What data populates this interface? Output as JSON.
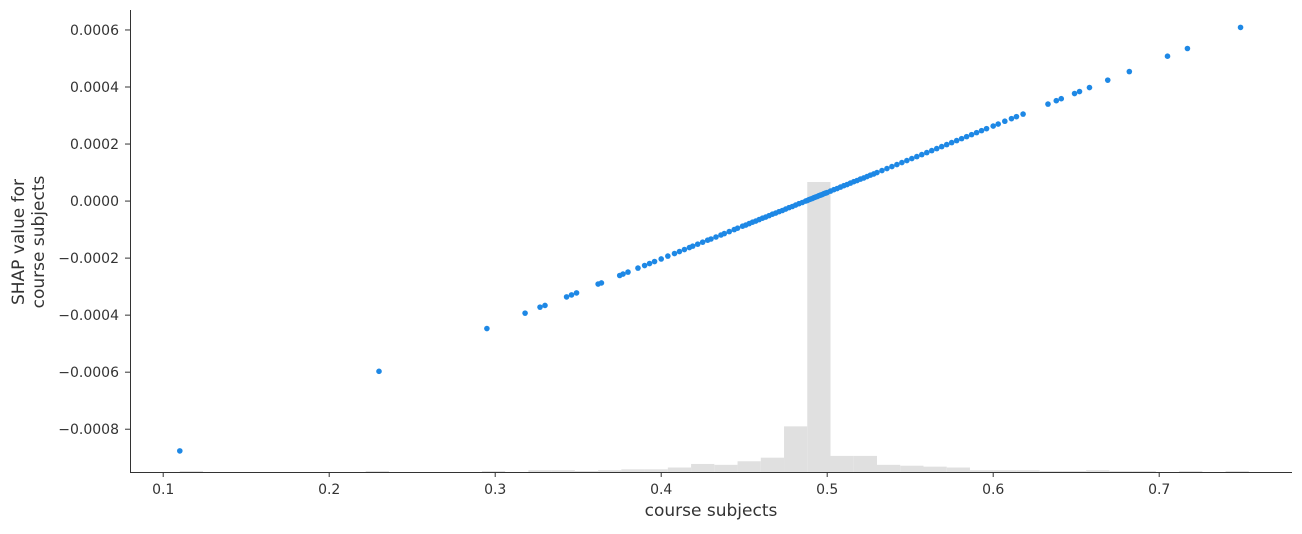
{
  "chart_data": {
    "type": "scatter",
    "title": "",
    "xlabel": "course subjects",
    "ylabel_lines": [
      "SHAP value for",
      "course subjects"
    ],
    "xlim": [
      0.08,
      0.78
    ],
    "ylim": [
      -0.00095,
      0.00067
    ],
    "x_ticks": [
      0.1,
      0.2,
      0.3,
      0.4,
      0.5,
      0.6,
      0.7
    ],
    "x_tick_labels": [
      "0.1",
      "0.2",
      "0.3",
      "0.4",
      "0.5",
      "0.6",
      "0.7"
    ],
    "y_ticks": [
      0.0006,
      0.0004,
      0.0002,
      0.0,
      -0.0002,
      -0.0004,
      -0.0006,
      -0.0008
    ],
    "y_tick_labels": [
      "0.0006",
      "0.0004",
      "0.0002",
      "0.0000",
      "−0.0002",
      "−0.0004",
      "−0.0006",
      "−0.0008"
    ],
    "grid": false,
    "colors": {
      "points": "#1E88E5",
      "histogram": "#E0E0E0",
      "axis": "#333333",
      "text": "#333333"
    },
    "series": [
      {
        "x": [
          0.11,
          0.23,
          0.295,
          0.318,
          0.327,
          0.33,
          0.343,
          0.346,
          0.349,
          0.362,
          0.364,
          0.375,
          0.377,
          0.38,
          0.386,
          0.39,
          0.393,
          0.396,
          0.4,
          0.404,
          0.408,
          0.411,
          0.414,
          0.417,
          0.419,
          0.422,
          0.425,
          0.428,
          0.43,
          0.433,
          0.436,
          0.438,
          0.441,
          0.444,
          0.446,
          0.449,
          0.451,
          0.453,
          0.455,
          0.457,
          0.459,
          0.461,
          0.463,
          0.465,
          0.467,
          0.469,
          0.471,
          0.473,
          0.475,
          0.477,
          0.479,
          0.481,
          0.483,
          0.485,
          0.487,
          0.488,
          0.489,
          0.49,
          0.491,
          0.492,
          0.493,
          0.494,
          0.495,
          0.496,
          0.497,
          0.498,
          0.499,
          0.5,
          0.502,
          0.504,
          0.506,
          0.508,
          0.51,
          0.512,
          0.514,
          0.516,
          0.518,
          0.52,
          0.522,
          0.524,
          0.526,
          0.528,
          0.53,
          0.533,
          0.536,
          0.539,
          0.542,
          0.545,
          0.548,
          0.551,
          0.554,
          0.557,
          0.56,
          0.563,
          0.566,
          0.569,
          0.572,
          0.575,
          0.578,
          0.581,
          0.584,
          0.587,
          0.59,
          0.593,
          0.596,
          0.6,
          0.603,
          0.607,
          0.611,
          0.614,
          0.618,
          0.633,
          0.638,
          0.641,
          0.649,
          0.652,
          0.658,
          0.669,
          0.682,
          0.705,
          0.717,
          0.749
        ],
        "y": [
          -0.000876,
          -0.000597,
          -0.000447,
          -0.000393,
          -0.000372,
          -0.000366,
          -0.000336,
          -0.000329,
          -0.000322,
          -0.000291,
          -0.000287,
          -0.000261,
          -0.000256,
          -0.000249,
          -0.000235,
          -0.000226,
          -0.000219,
          -0.000212,
          -0.000203,
          -0.000193,
          -0.000184,
          -0.000177,
          -0.00017,
          -0.000163,
          -0.000158,
          -0.000151,
          -0.000144,
          -0.000137,
          -0.000133,
          -0.000126,
          -0.000119,
          -0.000114,
          -0.000107,
          -0.0001,
          -9.5e-05,
          -8.8e-05,
          -8.4e-05,
          -7.9e-05,
          -7.4e-05,
          -7e-05,
          -6.5e-05,
          -6e-05,
          -5.6e-05,
          -5.1e-05,
          -4.6e-05,
          -4.2e-05,
          -3.7e-05,
          -3.3e-05,
          -2.8e-05,
          -2.3e-05,
          -1.9e-05,
          -1.4e-05,
          -9e-06,
          -5e-06,
          0.0,
          2e-06,
          5e-06,
          7e-06,
          9e-06,
          1.2e-05,
          1.4e-05,
          1.6e-05,
          1.9e-05,
          2.1e-05,
          2.3e-05,
          2.6e-05,
          2.8e-05,
          3e-05,
          3.5e-05,
          4e-05,
          4.4e-05,
          4.9e-05,
          5.4e-05,
          5.8e-05,
          6.3e-05,
          6.8e-05,
          7.2e-05,
          7.7e-05,
          8.1e-05,
          8.6e-05,
          9.1e-05,
          9.5e-05,
          0.0001,
          0.000107,
          0.000114,
          0.000121,
          0.000128,
          0.000135,
          0.000142,
          0.000149,
          0.000156,
          0.000163,
          0.00017,
          0.000177,
          0.000184,
          0.000191,
          0.000198,
          0.000205,
          0.000212,
          0.000219,
          0.000226,
          0.000233,
          0.00024,
          0.000247,
          0.000254,
          0.000263,
          0.00027,
          0.00028,
          0.000289,
          0.000296,
          0.000305,
          0.00034,
          0.000352,
          0.000359,
          0.000377,
          0.000384,
          0.000398,
          0.000424,
          0.000454,
          0.000508,
          0.000535,
          0.000609
        ]
      }
    ],
    "histogram": {
      "bin_edges": [
        0.11,
        0.124,
        0.138,
        0.152,
        0.166,
        0.18,
        0.194,
        0.208,
        0.222,
        0.236,
        0.25,
        0.264,
        0.278,
        0.292,
        0.306,
        0.32,
        0.334,
        0.348,
        0.362,
        0.376,
        0.39,
        0.404,
        0.418,
        0.432,
        0.446,
        0.46,
        0.474,
        0.488,
        0.502,
        0.516,
        0.53,
        0.544,
        0.558,
        0.572,
        0.586,
        0.6,
        0.614,
        0.628,
        0.642,
        0.656,
        0.67,
        0.684,
        0.698,
        0.712,
        0.726,
        0.74,
        0.754
      ],
      "counts": [
        1,
        0,
        0,
        0,
        0,
        0,
        0,
        0,
        1,
        0,
        0,
        0,
        0,
        1,
        0,
        2,
        2,
        1,
        2,
        3,
        3,
        5,
        9,
        8,
        12,
        16,
        51,
        324,
        18,
        18,
        8,
        7,
        6,
        5,
        2,
        2,
        2,
        1,
        1,
        2,
        1,
        1,
        0,
        1,
        0,
        1
      ]
    }
  }
}
